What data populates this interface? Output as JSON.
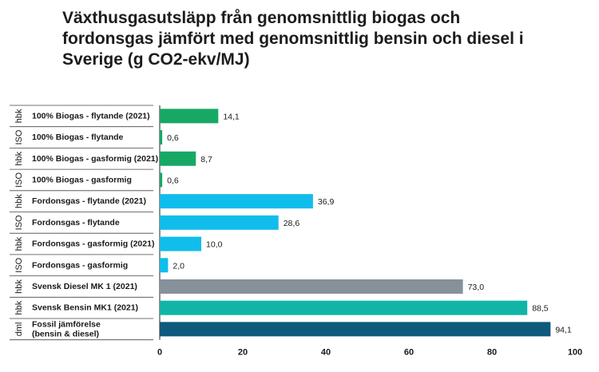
{
  "title": "Växthusgasutsläpp från genomsnittlig biogas och fordonsgas jämfört med genomsnittlig bensin och diesel i Sverige (g CO2-ekv/MJ)",
  "chart_data": {
    "type": "bar",
    "orientation": "horizontal",
    "title": "Växthusgasutsläpp från genomsnittlig biogas och fordonsgas jämfört med genomsnittlig bensin och diesel i Sverige (g CO2-ekv/MJ)",
    "xlabel": "",
    "ylabel": "",
    "xlim": [
      0,
      100
    ],
    "xticks": [
      "0",
      "20",
      "40",
      "60",
      "80",
      "100"
    ],
    "grid": false,
    "categories": [
      {
        "label": [
          "100% Biogas - flytande (2021)"
        ],
        "value": 14.1,
        "value_label": "14,1",
        "color": "#17a866"
      },
      {
        "label": [
          "100% Biogas - flytande"
        ],
        "value": 0.6,
        "value_label": "0,6",
        "color": "#17a866"
      },
      {
        "label": [
          "100% Biogas - gasformig (2021)"
        ],
        "value": 8.7,
        "value_label": "8,7",
        "color": "#17a866"
      },
      {
        "label": [
          "100% Biogas - gasformig"
        ],
        "value": 0.6,
        "value_label": "0,6",
        "color": "#17a866"
      },
      {
        "label": [
          "Fordonsgas - flytande (2021)"
        ],
        "value": 36.9,
        "value_label": "36,9",
        "color": "#11bdeb"
      },
      {
        "label": [
          "Fordonsgas - flytande"
        ],
        "value": 28.6,
        "value_label": "28,6",
        "color": "#11bdeb"
      },
      {
        "label": [
          "Fordonsgas - gasformig (2021)"
        ],
        "value": 10.0,
        "value_label": "10,0",
        "color": "#11bdeb"
      },
      {
        "label": [
          "Fordonsgas - gasformig"
        ],
        "value": 2.0,
        "value_label": "2,0",
        "color": "#11bdeb"
      },
      {
        "label": [
          "Svensk Diesel MK 1 (2021)"
        ],
        "value": 73.0,
        "value_label": "73,0",
        "color": "#87919a"
      },
      {
        "label": [
          "Svensk Bensin MK1 (2021)"
        ],
        "value": 88.5,
        "value_label": "88,5",
        "color": "#11b5a6"
      },
      {
        "label": [
          "Fossil jämförelse",
          "(bensin & diesel)"
        ],
        "value": 94.1,
        "value_label": "94,1",
        "color": "#0d5a7c"
      }
    ],
    "groups": [
      {
        "label": "hbk",
        "from": 0,
        "to": 0
      },
      {
        "label": "ISO",
        "from": 1,
        "to": 1
      },
      {
        "label": "hbk",
        "from": 2,
        "to": 2
      },
      {
        "label": "ISO",
        "from": 3,
        "to": 3
      },
      {
        "label": "hbk",
        "from": 4,
        "to": 4
      },
      {
        "label": "ISO",
        "from": 5,
        "to": 5
      },
      {
        "label": "hbk",
        "from": 6,
        "to": 6
      },
      {
        "label": "ISO",
        "from": 7,
        "to": 7
      },
      {
        "label": "hbk",
        "from": 8,
        "to": 8
      },
      {
        "label": "hbk",
        "from": 9,
        "to": 9
      },
      {
        "label": "dml",
        "from": 10,
        "to": 10
      }
    ]
  }
}
